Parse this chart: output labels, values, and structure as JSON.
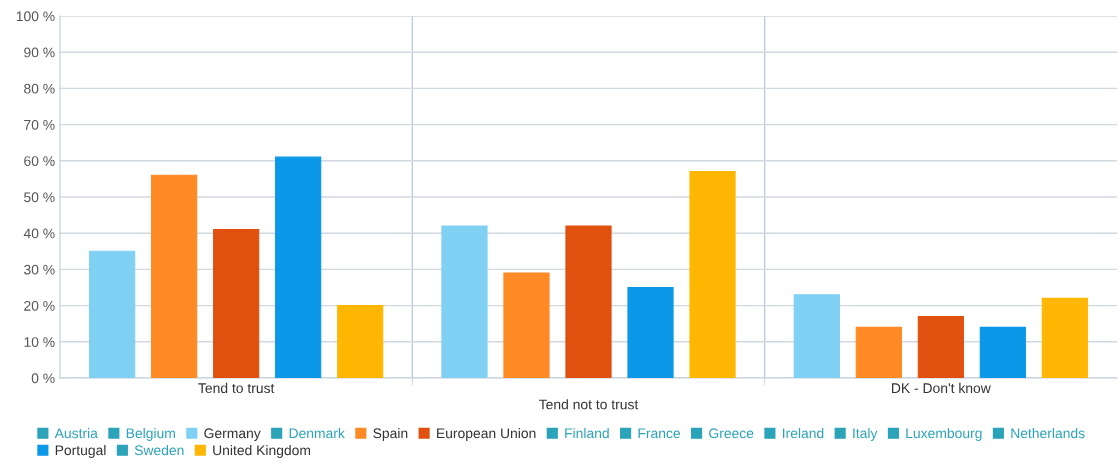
{
  "chart_data": {
    "type": "bar",
    "categories": [
      "Tend to trust",
      "Tend not to trust",
      "DK - Don't know"
    ],
    "series": [
      {
        "name": "Austria",
        "color": "#2ba3b8",
        "values": [
          null,
          null,
          null
        ]
      },
      {
        "name": "Belgium",
        "color": "#2ba3b8",
        "values": [
          null,
          null,
          null
        ]
      },
      {
        "name": "Germany",
        "color": "#7fd0f3",
        "values": [
          35,
          42,
          23
        ]
      },
      {
        "name": "Denmark",
        "color": "#2ba3b8",
        "values": [
          null,
          null,
          null
        ]
      },
      {
        "name": "Spain",
        "color": "#fd8a24",
        "values": [
          56,
          29,
          14
        ]
      },
      {
        "name": "European Union",
        "color": "#e0500f",
        "values": [
          41,
          42,
          17
        ]
      },
      {
        "name": "Finland",
        "color": "#2ba3b8",
        "values": [
          null,
          null,
          null
        ]
      },
      {
        "name": "France",
        "color": "#2ba3b8",
        "values": [
          null,
          null,
          null
        ]
      },
      {
        "name": "Greece",
        "color": "#2ba3b8",
        "values": [
          null,
          null,
          null
        ]
      },
      {
        "name": "Ireland",
        "color": "#2ba3b8",
        "values": [
          null,
          null,
          null
        ]
      },
      {
        "name": "Italy",
        "color": "#2ba3b8",
        "values": [
          null,
          null,
          null
        ]
      },
      {
        "name": "Luxembourg",
        "color": "#2ba3b8",
        "values": [
          null,
          null,
          null
        ]
      },
      {
        "name": "Netherlands",
        "color": "#2ba3b8",
        "values": [
          null,
          null,
          null
        ]
      },
      {
        "name": "Portugal",
        "color": "#0b98e8",
        "values": [
          61,
          25,
          14
        ]
      },
      {
        "name": "Sweden",
        "color": "#2ba3b8",
        "values": [
          null,
          null,
          null
        ]
      },
      {
        "name": "United Kingdom",
        "color": "#ffb703",
        "values": [
          20,
          57,
          22
        ]
      }
    ],
    "ylim": [
      0,
      100
    ],
    "yticks": [
      {
        "value": 0,
        "label": "0 %"
      },
      {
        "value": 10,
        "label": "10 %"
      },
      {
        "value": 20,
        "label": "20 %"
      },
      {
        "value": 30,
        "label": "30 %"
      },
      {
        "value": 40,
        "label": "40 %"
      },
      {
        "value": 50,
        "label": "50 %"
      },
      {
        "value": 60,
        "label": "60 %"
      },
      {
        "value": 70,
        "label": "70 %"
      },
      {
        "value": 80,
        "label": "80 %"
      },
      {
        "value": 90,
        "label": "90 %"
      },
      {
        "value": 100,
        "label": "100 %"
      }
    ],
    "grid": true,
    "legend": "bottom"
  }
}
